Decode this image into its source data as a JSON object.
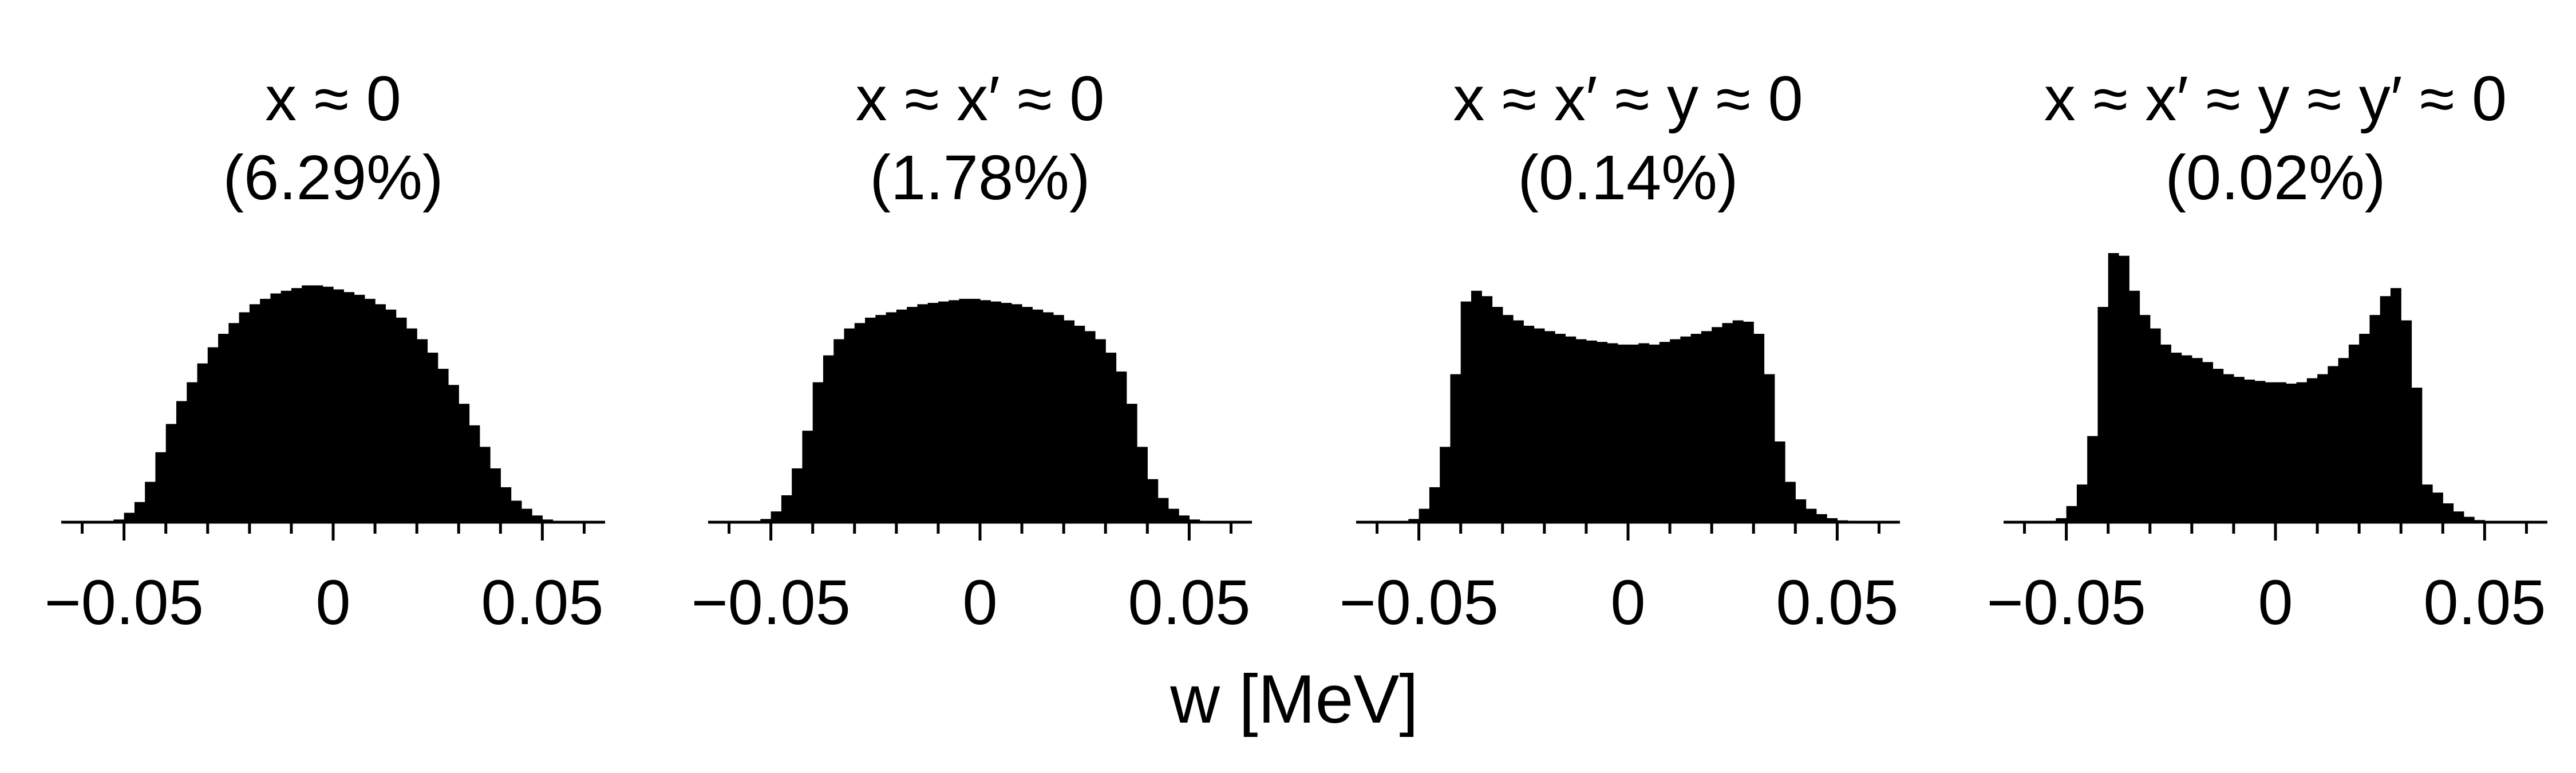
{
  "figure": {
    "xlabel": "w [MeV]",
    "bar_color": "#000000"
  },
  "chart_data": [
    {
      "type": "bar",
      "title": "x ≈ 0",
      "subtitle": "(6.29%)",
      "xlabel": "w [MeV]",
      "ylabel": "",
      "xlim": [
        -0.065,
        0.065
      ],
      "xticks": [
        -0.05,
        0,
        0.05
      ],
      "xtick_labels": [
        "−0.05",
        "0",
        "0.05"
      ],
      "minor_tick_step": 0.01,
      "bin_range": [
        -0.0625,
        0.0625
      ],
      "values": [
        0,
        0,
        0.002,
        0.004,
        0.01,
        0.035,
        0.075,
        0.15,
        0.26,
        0.365,
        0.45,
        0.52,
        0.59,
        0.65,
        0.7,
        0.74,
        0.78,
        0.81,
        0.83,
        0.85,
        0.86,
        0.87,
        0.88,
        0.88,
        0.875,
        0.865,
        0.855,
        0.845,
        0.83,
        0.81,
        0.79,
        0.76,
        0.72,
        0.68,
        0.63,
        0.57,
        0.51,
        0.44,
        0.36,
        0.28,
        0.2,
        0.13,
        0.08,
        0.05,
        0.025,
        0.01,
        0.003,
        0.001,
        0,
        0
      ],
      "ylim": [
        0,
        1
      ]
    },
    {
      "type": "bar",
      "title": "x ≈ x′ ≈ 0",
      "subtitle": "(1.78%)",
      "xlabel": "w [MeV]",
      "ylabel": "",
      "xlim": [
        -0.065,
        0.065
      ],
      "xticks": [
        -0.05,
        0,
        0.05
      ],
      "xtick_labels": [
        "−0.05",
        "0",
        "0.05"
      ],
      "minor_tick_step": 0.01,
      "bin_range": [
        -0.0625,
        0.0625
      ],
      "values": [
        0,
        0,
        0.002,
        0.004,
        0.012,
        0.04,
        0.1,
        0.2,
        0.34,
        0.52,
        0.62,
        0.68,
        0.72,
        0.74,
        0.76,
        0.77,
        0.78,
        0.79,
        0.8,
        0.81,
        0.815,
        0.82,
        0.825,
        0.83,
        0.83,
        0.825,
        0.82,
        0.815,
        0.81,
        0.8,
        0.79,
        0.78,
        0.77,
        0.75,
        0.73,
        0.71,
        0.68,
        0.63,
        0.56,
        0.44,
        0.28,
        0.16,
        0.09,
        0.05,
        0.025,
        0.01,
        0.003,
        0.001,
        0,
        0
      ],
      "ylim": [
        0,
        1
      ]
    },
    {
      "type": "bar",
      "title": "x ≈ x′ ≈ y ≈ 0",
      "subtitle": "(0.14%)",
      "xlabel": "w [MeV]",
      "ylabel": "",
      "xlim": [
        -0.065,
        0.065
      ],
      "xticks": [
        -0.05,
        0,
        0.05
      ],
      "xtick_labels": [
        "−0.05",
        "0",
        "0.05"
      ],
      "minor_tick_step": 0.01,
      "bin_range": [
        -0.0625,
        0.0625
      ],
      "values": [
        0,
        0,
        0.002,
        0.004,
        0.012,
        0.05,
        0.13,
        0.28,
        0.55,
        0.82,
        0.86,
        0.84,
        0.8,
        0.77,
        0.75,
        0.73,
        0.72,
        0.71,
        0.7,
        0.69,
        0.68,
        0.675,
        0.67,
        0.665,
        0.66,
        0.66,
        0.665,
        0.66,
        0.67,
        0.68,
        0.69,
        0.7,
        0.71,
        0.725,
        0.74,
        0.75,
        0.745,
        0.7,
        0.55,
        0.3,
        0.15,
        0.085,
        0.05,
        0.03,
        0.015,
        0.007,
        0.002,
        0.001,
        0,
        0
      ],
      "ylim": [
        0,
        1
      ]
    },
    {
      "type": "bar",
      "title": "x ≈ x′ ≈ y ≈ y′ ≈ 0",
      "subtitle": "(0.02%)",
      "xlabel": "w [MeV]",
      "ylabel": "",
      "xlim": [
        -0.065,
        0.065
      ],
      "xticks": [
        -0.05,
        0,
        0.05
      ],
      "xtick_labels": [
        "−0.05",
        "0",
        "0.05"
      ],
      "minor_tick_step": 0.01,
      "bin_range": [
        -0.0625,
        0.0625
      ],
      "values": [
        0,
        0,
        0.002,
        0.005,
        0.015,
        0.06,
        0.14,
        0.32,
        0.8,
        1.0,
        0.99,
        0.86,
        0.77,
        0.72,
        0.66,
        0.63,
        0.62,
        0.61,
        0.595,
        0.57,
        0.55,
        0.54,
        0.53,
        0.525,
        0.52,
        0.52,
        0.515,
        0.52,
        0.535,
        0.55,
        0.58,
        0.61,
        0.66,
        0.7,
        0.77,
        0.84,
        0.87,
        0.75,
        0.5,
        0.14,
        0.11,
        0.07,
        0.04,
        0.02,
        0.008,
        0.003,
        0.001,
        0,
        0,
        0
      ],
      "ylim": [
        0,
        1
      ]
    }
  ]
}
